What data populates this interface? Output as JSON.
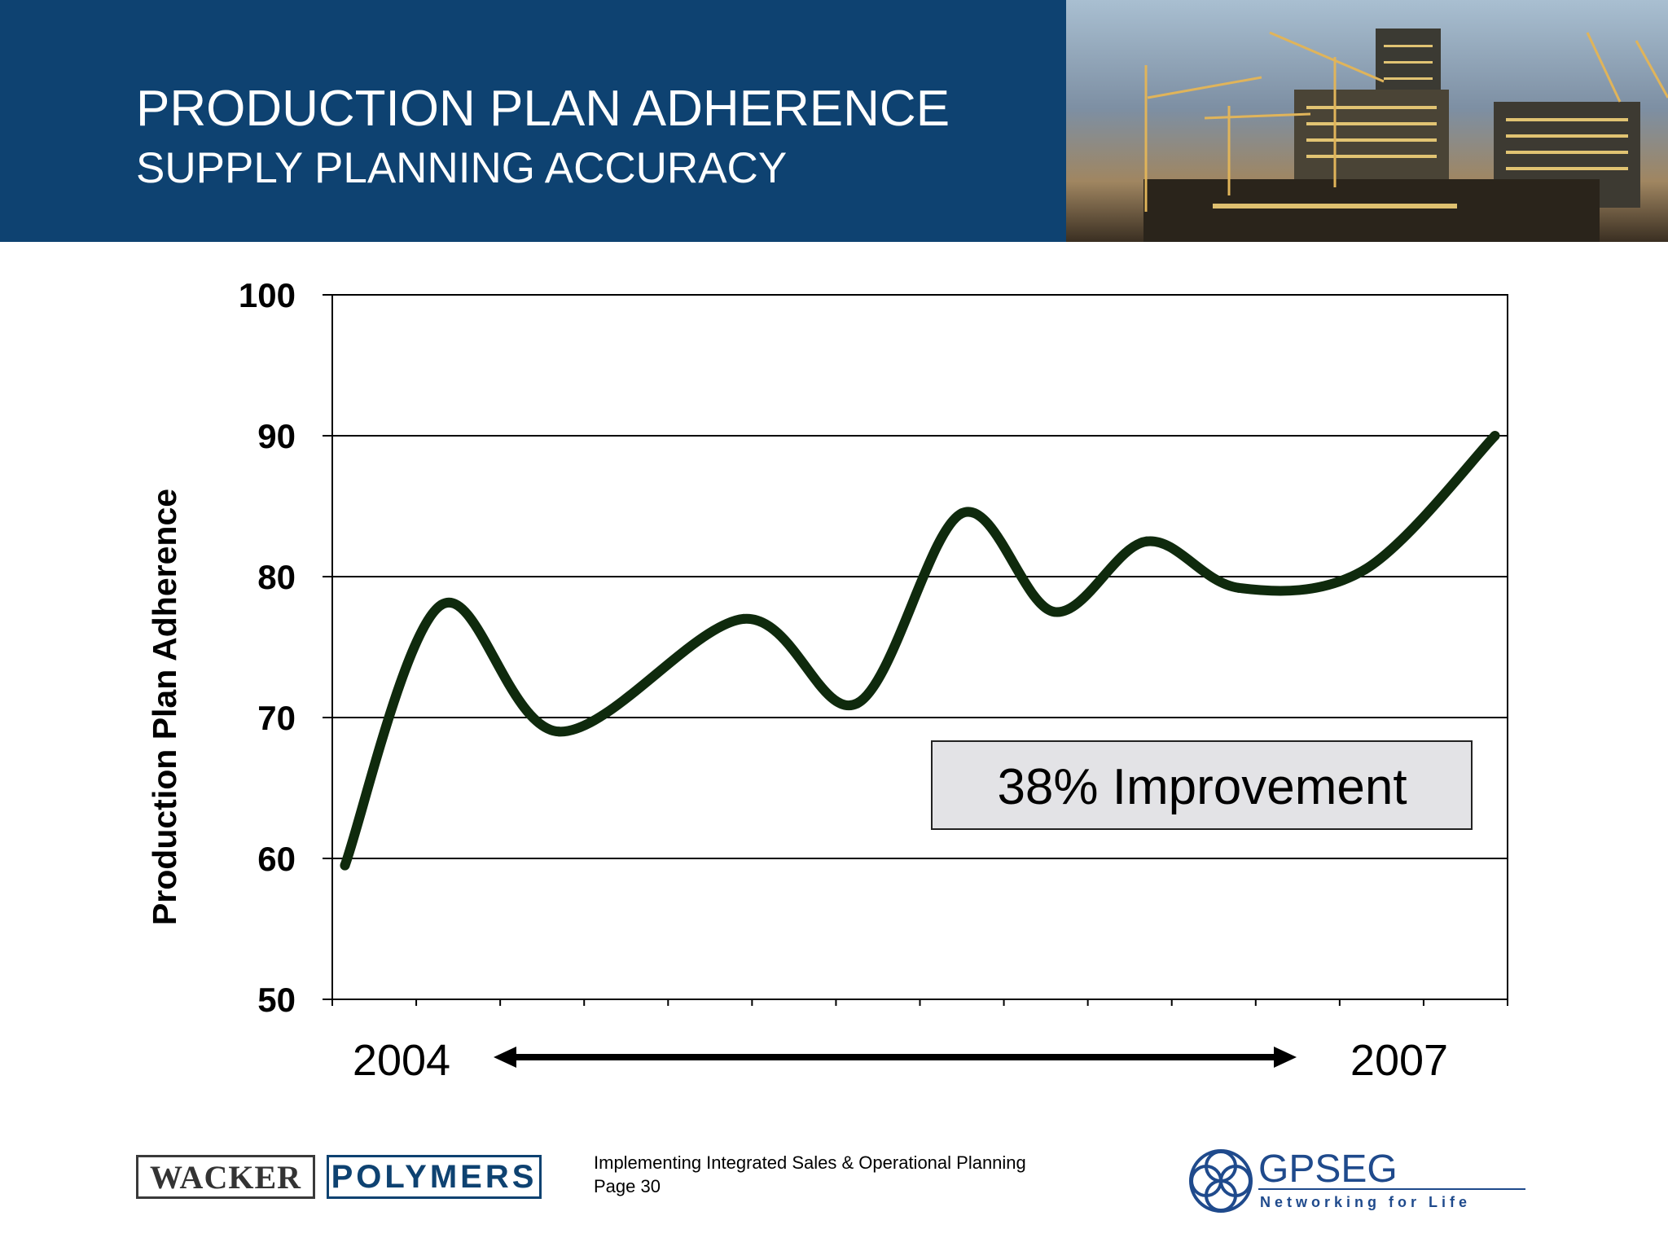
{
  "header": {
    "title": "PRODUCTION PLAN ADHERENCE",
    "subtitle": "SUPPLY PLANNING ACCURACY"
  },
  "annotation": "38% Improvement",
  "footer": {
    "line1": "Implementing Integrated Sales & Operational Planning",
    "line2": "Page 30"
  },
  "logos": {
    "wacker": "WACKER",
    "polymers": "POLYMERS",
    "gpseg": "GPSEG",
    "gpseg_tagline": "Networking for Life"
  },
  "colors": {
    "header_bg": "#0e4271",
    "line": "#0f2a0d",
    "annotation_bg": "#e3e3e6"
  },
  "chart_data": {
    "type": "line",
    "title": "",
    "ylabel": "Production Plan Adherence",
    "xlabel": "",
    "ylim": [
      50,
      100
    ],
    "yticks": [
      50,
      60,
      70,
      80,
      90,
      100
    ],
    "x_start_label": "2004",
    "x_end_label": "2007",
    "grid": "horizontal",
    "x_tick_count": 14,
    "series": [
      {
        "values": [
          {
            "x": 0.15,
            "y": 59.5
          },
          {
            "x": 1.3,
            "y": 78
          },
          {
            "x": 2.7,
            "y": 69
          },
          {
            "x": 4.9,
            "y": 77
          },
          {
            "x": 6.25,
            "y": 71
          },
          {
            "x": 7.5,
            "y": 84.5
          },
          {
            "x": 8.6,
            "y": 77.5
          },
          {
            "x": 9.7,
            "y": 82.5
          },
          {
            "x": 10.8,
            "y": 79.2
          },
          {
            "x": 12.3,
            "y": 80.5
          },
          {
            "x": 13.85,
            "y": 90
          }
        ]
      }
    ]
  }
}
